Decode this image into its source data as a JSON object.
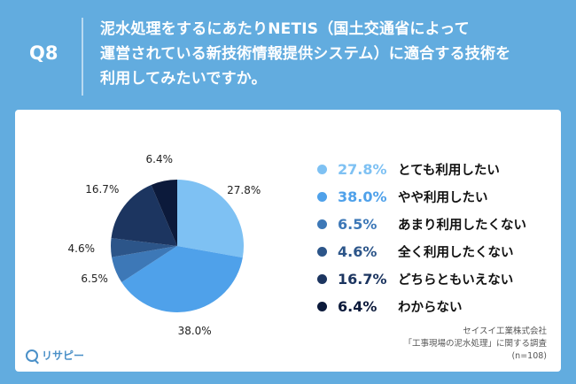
{
  "header": {
    "q_label": "Q8",
    "question_line1": "泥水処理をするにあたりNETIS（国土交通省によって",
    "question_line2": "運営されている新技術情報提供システム）に適合する技術を",
    "question_line3": "利用してみたいですか。"
  },
  "footer": {
    "source_line1": "セイスイ工業株式会社",
    "source_line2": "「工事現場の泥水処理」に関する調査",
    "source_line3": "(n=108)",
    "logo_text": "リサピー"
  },
  "chart_data": {
    "type": "pie",
    "title": "",
    "slices": [
      {
        "label": "とても利用したい",
        "value": 27.8,
        "display": "27.8%",
        "color": "#7ec1f3"
      },
      {
        "label": "やや利用したい",
        "value": 38.0,
        "display": "38.0%",
        "color": "#4fa1ea"
      },
      {
        "label": "あまり利用したくない",
        "value": 6.5,
        "display": "6.5%",
        "color": "#3d78b7"
      },
      {
        "label": "全く利用したくない",
        "value": 4.6,
        "display": "4.6%",
        "color": "#2c5589"
      },
      {
        "label": "どちらともいえない",
        "value": 16.7,
        "display": "16.7%",
        "color": "#1c3560"
      },
      {
        "label": "わからない",
        "value": 6.4,
        "display": "6.4%",
        "color": "#0c1a3b"
      }
    ],
    "start_angle": "12 o'clock",
    "direction": "clockwise",
    "legend_position": "right"
  }
}
